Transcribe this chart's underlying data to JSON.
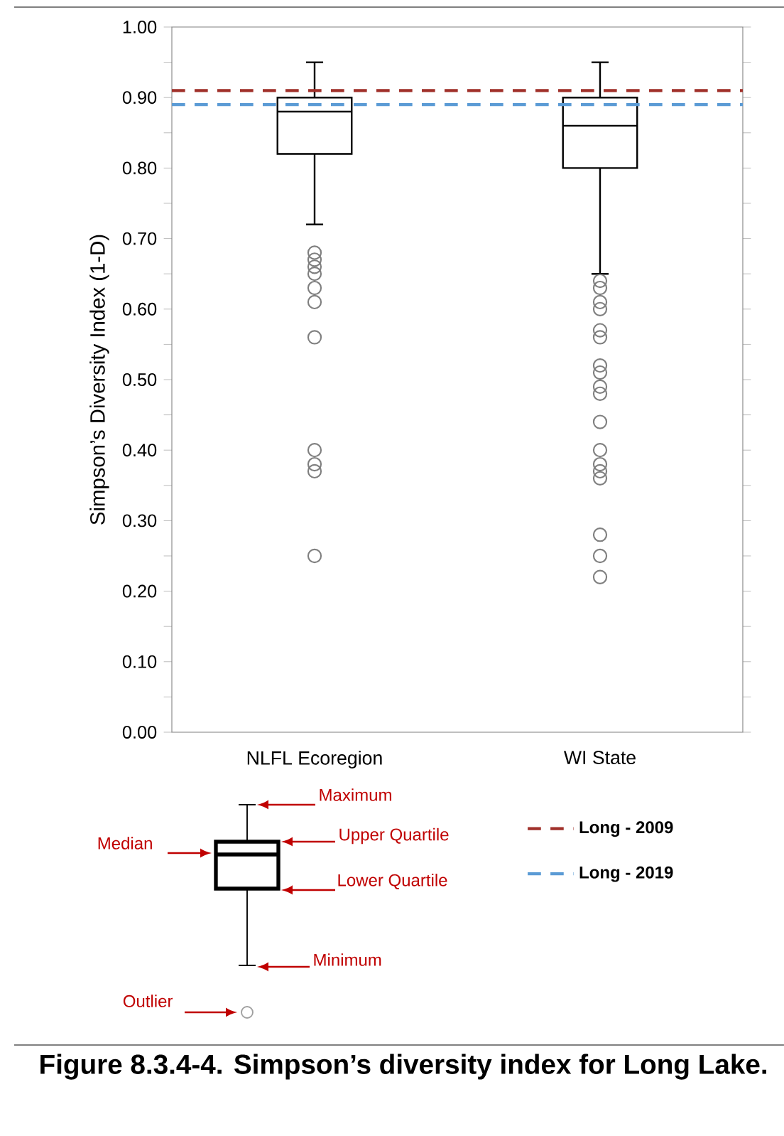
{
  "chart_data": {
    "type": "box",
    "title": "Figure 8.3.4-4. Simpson’s diversity index for Long Lake.",
    "ylabel": "Simpson’s Diversity Index (1-D)",
    "categories": [
      "NLFL Ecoregion",
      "WI State"
    ],
    "boxes": [
      {
        "low": 0.72,
        "q1": 0.82,
        "median": 0.88,
        "q3": 0.9,
        "high": 0.95,
        "outliers": [
          0.68,
          0.67,
          0.66,
          0.65,
          0.63,
          0.61,
          0.56,
          0.4,
          0.38,
          0.37,
          0.25
        ]
      },
      {
        "low": 0.65,
        "q1": 0.8,
        "median": 0.86,
        "q3": 0.9,
        "high": 0.95,
        "outliers": [
          0.64,
          0.63,
          0.61,
          0.6,
          0.57,
          0.56,
          0.52,
          0.51,
          0.49,
          0.48,
          0.44,
          0.4,
          0.38,
          0.37,
          0.36,
          0.28,
          0.25,
          0.22
        ]
      }
    ],
    "ylim": [
      0,
      1
    ],
    "yticks": [
      {
        "value": 0,
        "label": "0.00"
      },
      {
        "value": 0.05,
        "label": null
      },
      {
        "value": 0.1,
        "label": "0.10"
      },
      {
        "value": 0.15,
        "label": null
      },
      {
        "value": 0.2,
        "label": "0.20"
      },
      {
        "value": 0.25,
        "label": null
      },
      {
        "value": 0.3,
        "label": "0.30"
      },
      {
        "value": 0.35,
        "label": null
      },
      {
        "value": 0.4,
        "label": "0.40"
      },
      {
        "value": 0.45,
        "label": null
      },
      {
        "value": 0.5,
        "label": "0.50"
      },
      {
        "value": 0.55,
        "label": null
      },
      {
        "value": 0.6,
        "label": "0.60"
      },
      {
        "value": 0.65,
        "label": null
      },
      {
        "value": 0.7,
        "label": "0.70"
      },
      {
        "value": 0.75,
        "label": null
      },
      {
        "value": 0.8,
        "label": "0.80"
      },
      {
        "value": 0.85,
        "label": null
      },
      {
        "value": 0.9,
        "label": "0.90"
      },
      {
        "value": 0.95,
        "label": null
      },
      {
        "value": 1,
        "label": "1.00"
      }
    ],
    "ref_lines": [
      {
        "axis": "y",
        "value": 0.91,
        "label": "Long - 2009",
        "color": "#a0302a",
        "line_style": "dashed"
      },
      {
        "axis": "y",
        "value": 0.89,
        "label": "Long - 2019",
        "color": "#5b9bd5",
        "line_style": "dashed"
      }
    ],
    "legend": "bottom",
    "annotations": [
      "Maximum",
      "Upper Quartile",
      "Median",
      "Lower Quartile",
      "Minimum",
      "Outlier"
    ]
  }
}
